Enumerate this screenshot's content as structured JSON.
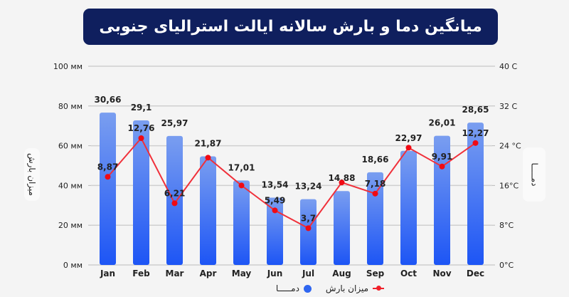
{
  "chart_data": {
    "type": "bar+line",
    "title": "میانگین دما و بارش سالانه ایالت استرالیای جنوبی",
    "categories": [
      "Jan",
      "Feb",
      "Mar",
      "Apr",
      "May",
      "Jun",
      "Jul",
      "Aug",
      "Sep",
      "Oct",
      "Nov",
      "Dec"
    ],
    "series": [
      {
        "name": "دمـــــا",
        "type": "bar",
        "axis": "right",
        "color": "#2f66f0",
        "values": [
          30.66,
          29.1,
          25.97,
          21.87,
          17.01,
          13.54,
          13.24,
          14.88,
          18.66,
          22.97,
          26.01,
          28.65
        ],
        "labels": [
          "30,66",
          "29,1",
          "25,97",
          "21,87",
          "17,01",
          "13,54",
          "13,24",
          "14,88",
          "18,66",
          "22,97",
          "26,01",
          "28,65"
        ]
      },
      {
        "name": "میزان بارش",
        "type": "line",
        "axis": "left",
        "color": "#f0202a",
        "values": [
          8.87,
          12.76,
          6.21,
          10.8,
          8.0,
          5.49,
          3.7,
          8.3,
          7.18,
          11.8,
          9.91,
          12.27
        ],
        "labels": [
          "8,87",
          "12,76",
          "6,21",
          null,
          null,
          "5,49",
          "3,7",
          null,
          "7,18",
          null,
          "9,91",
          "12,27"
        ]
      }
    ],
    "left_axis": {
      "label": "میزان بارش",
      "ticks": [
        "0 мм",
        "20 мм",
        "40 мм",
        "60 мм",
        "80 мм",
        "100 мм"
      ],
      "range": [
        0,
        100
      ]
    },
    "right_axis": {
      "label": "دمـــــا",
      "ticks": [
        "0°C",
        "8°C",
        "16°C",
        "24 °C",
        "32 C",
        "40 C"
      ],
      "range": [
        0,
        40
      ]
    },
    "line_scale_range": [
      0,
      20
    ],
    "grid": true,
    "legend": {
      "position": "bottom",
      "items": [
        "میزان بارش",
        "دمـــــا"
      ]
    }
  }
}
